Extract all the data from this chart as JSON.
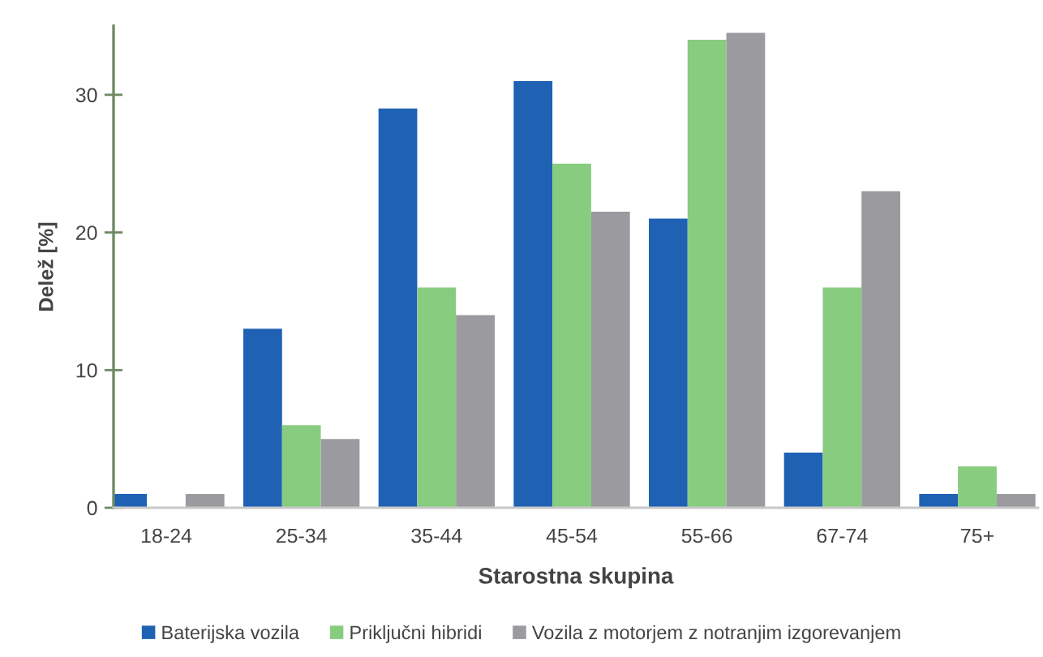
{
  "chart_data": {
    "type": "bar",
    "xlabel": "Starostna skupina",
    "ylabel": "Delež [%]",
    "categories": [
      "18-24",
      "25-34",
      "35-44",
      "45-54",
      "55-66",
      "67-74",
      "75+"
    ],
    "series": [
      {
        "name": "Baterijska vozila",
        "color": "#1f62b4",
        "values": [
          1,
          13,
          29,
          31,
          21,
          4,
          1
        ]
      },
      {
        "name": "Priključni hibridi",
        "color": "#88cc80",
        "values": [
          0,
          6,
          16,
          25,
          34,
          16,
          3
        ]
      },
      {
        "name": "Vozila z motorjem z notranjim izgorevanjem",
        "color": "#9b9b9f",
        "values": [
          1,
          5,
          14,
          21.5,
          34.5,
          23,
          1
        ]
      }
    ],
    "ylim": [
      0,
      35
    ],
    "yticks": [
      0,
      10,
      20,
      30
    ],
    "grid": false,
    "legend": "bottom"
  }
}
